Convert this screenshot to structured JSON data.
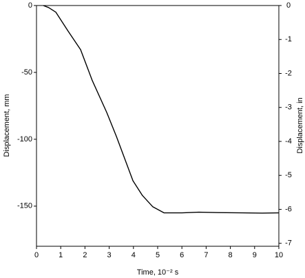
{
  "chart_data": {
    "type": "line",
    "xlabel": "Time, 10⁻² s",
    "ylabel": "Displacement, mm",
    "y2label": "Displacement, in",
    "x": [
      0.28,
      0.5,
      0.8,
      1.3,
      1.82,
      2.3,
      2.9,
      3.3,
      3.98,
      4.37,
      4.8,
      5.26,
      6.0,
      6.7,
      7.5,
      8.5,
      9.3,
      10
    ],
    "series": [
      {
        "name": "Displacement",
        "color": "#000000",
        "values": [
          0,
          -1.5,
          -5,
          -19,
          -33,
          -56,
          -80,
          -98,
          -131,
          -142,
          -150.5,
          -155,
          -155,
          -154.5,
          -154.8,
          -155,
          -155.2,
          -155
        ]
      }
    ],
    "xlim": [
      0,
      10
    ],
    "xticks": [
      0,
      1,
      2,
      3,
      4,
      5,
      6,
      7,
      8,
      9,
      10
    ],
    "ylim": [
      -180,
      0
    ],
    "yticks": [
      0,
      -50,
      -100,
      -150
    ],
    "y2lim": [
      -7.087,
      0
    ],
    "y2ticks": [
      0,
      -1,
      -2,
      -3,
      -4,
      -5,
      -6,
      -7
    ]
  }
}
